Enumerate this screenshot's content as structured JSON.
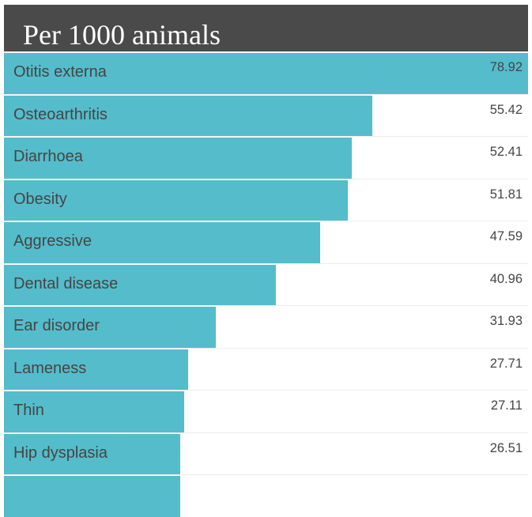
{
  "chart_data": {
    "type": "bar",
    "orientation": "horizontal",
    "title": "Per 1000 animals",
    "categories": [
      "Otitis externa",
      "Osteoarthritis",
      "Diarrhoea",
      "Obesity",
      "Aggressive",
      "Dental disease",
      "Ear disorder",
      "Lameness",
      "Thin",
      "Hip dysplasia"
    ],
    "values": [
      78.92,
      55.42,
      52.41,
      51.81,
      47.59,
      40.96,
      31.93,
      27.71,
      27.11,
      26.51
    ],
    "value_labels": [
      "78.92",
      "55.42",
      "52.41",
      "51.81",
      "47.59",
      "40.96",
      "31.93",
      "27.71",
      "27.11",
      "26.51"
    ],
    "xlim": [
      0,
      78.92
    ],
    "bar_color": "#55bccb",
    "header_color": "#4a4a4a"
  }
}
